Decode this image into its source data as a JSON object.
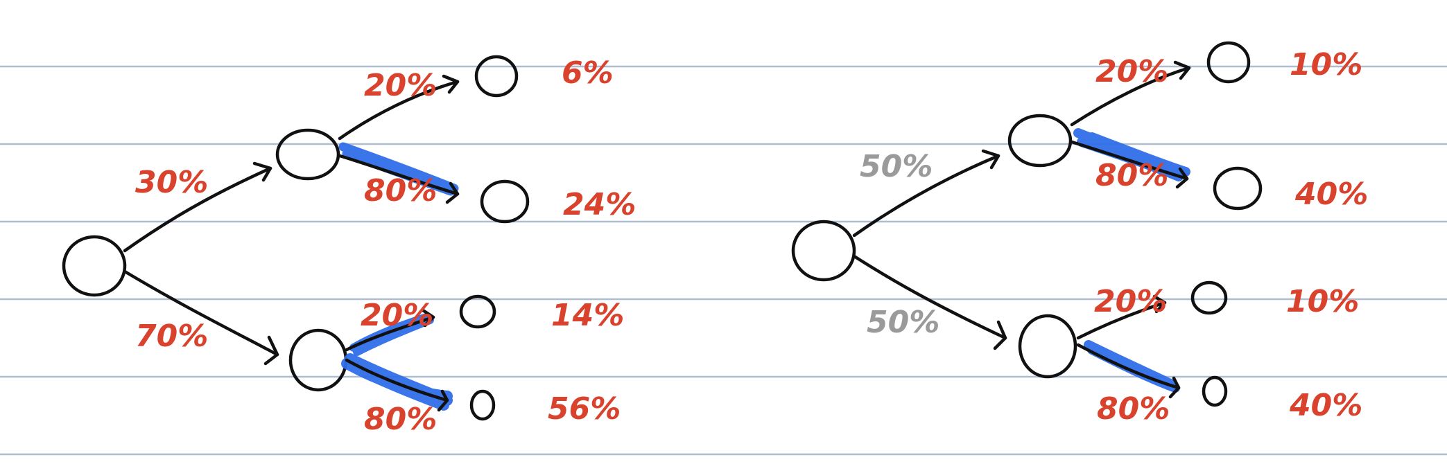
{
  "colors": {
    "background": "#ffffff",
    "ruled_lines": "#aebdd0",
    "ink": "#111111",
    "label_red": "#d9432e",
    "label_gray": "#9a9a9a",
    "highlight_blue": "#2f6ee8"
  },
  "trees": [
    {
      "root_branches": [
        {
          "label": "30%",
          "label_color": "red",
          "branches": [
            {
              "label": "20%",
              "leaf_result": "6%",
              "highlighted": false
            },
            {
              "label": "80%",
              "leaf_result": "24%",
              "highlighted": true
            }
          ]
        },
        {
          "label": "70%",
          "label_color": "red",
          "branches": [
            {
              "label": "20%",
              "leaf_result": "14%",
              "highlighted": true
            },
            {
              "label": "80%",
              "leaf_result": "56%",
              "highlighted": true
            }
          ]
        }
      ]
    },
    {
      "root_branches": [
        {
          "label": "50%",
          "label_color": "gray",
          "branches": [
            {
              "label": "20%",
              "leaf_result": "10%",
              "highlighted": false
            },
            {
              "label": "80%",
              "leaf_result": "40%",
              "highlighted": true
            }
          ]
        },
        {
          "label": "50%",
          "label_color": "gray",
          "branches": [
            {
              "label": "20%",
              "leaf_result": "10%",
              "highlighted": false
            },
            {
              "label": "80%",
              "leaf_result": "40%",
              "highlighted": true
            }
          ]
        }
      ]
    }
  ]
}
